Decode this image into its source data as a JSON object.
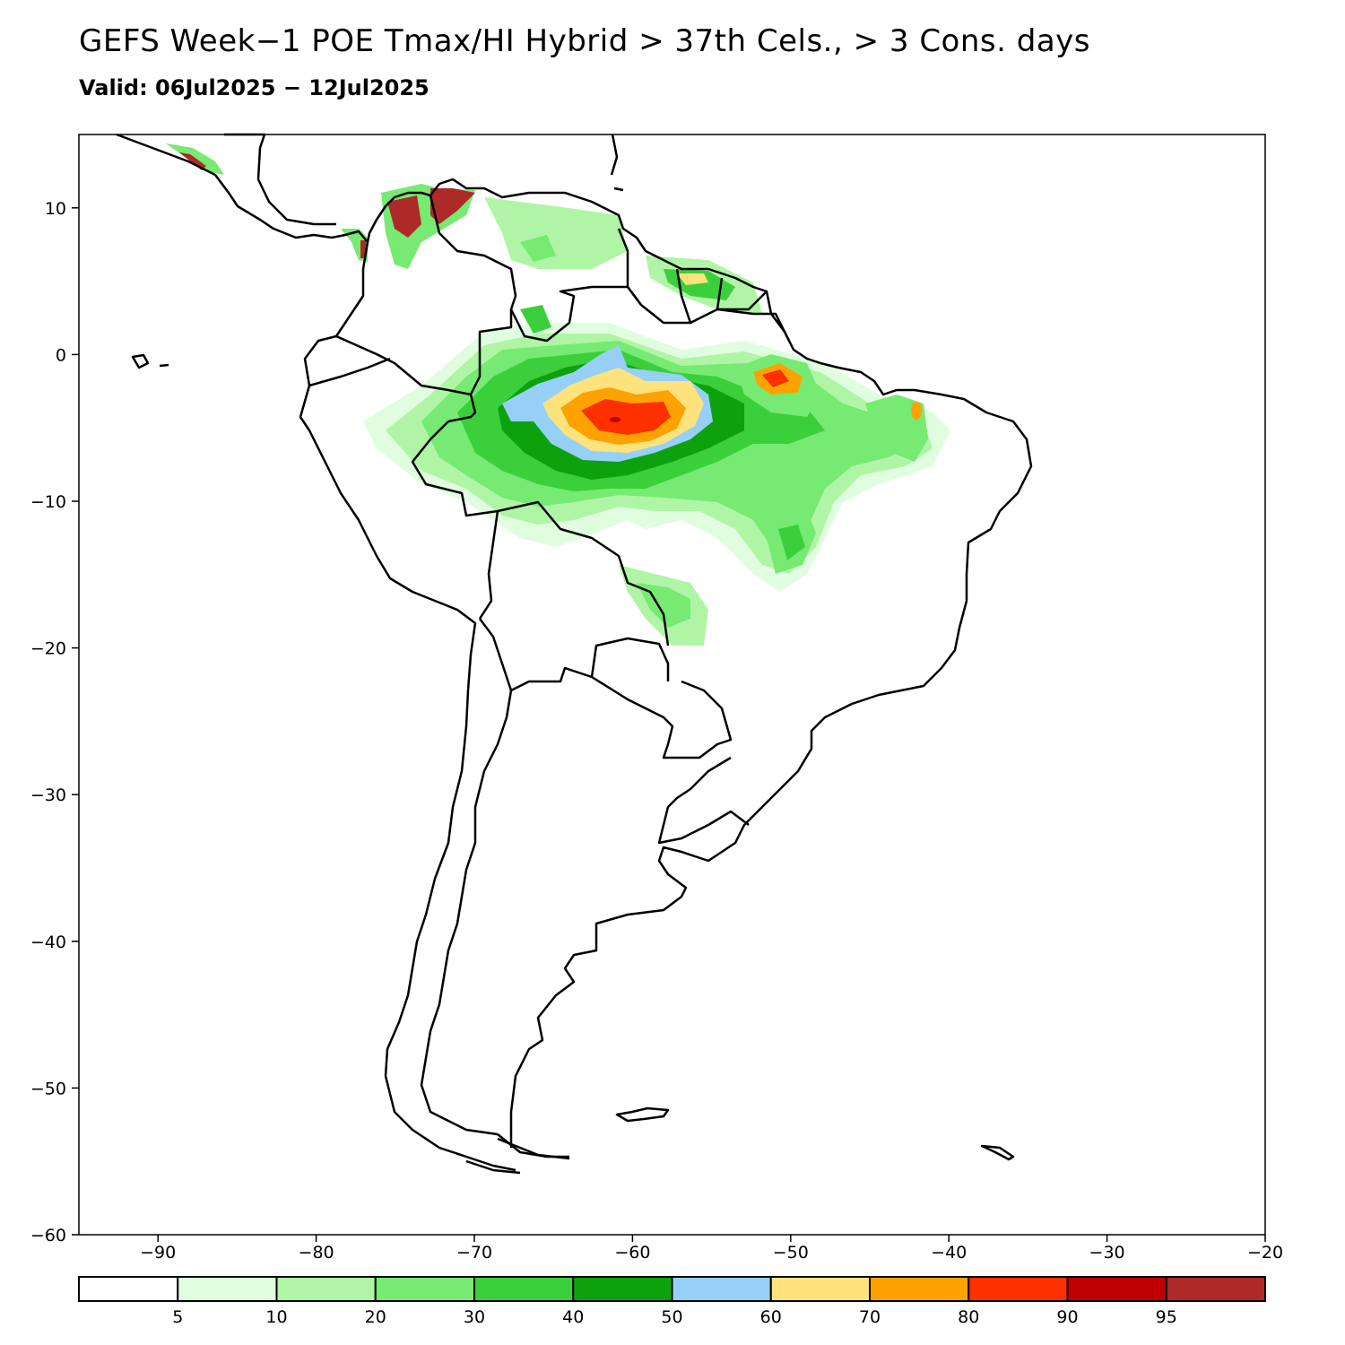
{
  "header": {
    "title": "GEFS Week−1 POE Tmax/HI Hybrid > 37th Cels., > 3 Cons. days",
    "subtitle": "Valid: 06Jul2025 − 12Jul2025"
  },
  "map": {
    "region": "South America",
    "lon_range": [
      -95,
      -20
    ],
    "lat_range": [
      -60,
      15
    ],
    "x_ticks": [
      "−90",
      "−80",
      "−70",
      "−60",
      "−50",
      "−40",
      "−30",
      "−20"
    ],
    "x_tick_values": [
      -90,
      -80,
      -70,
      -60,
      -50,
      -40,
      -30,
      -20
    ],
    "y_ticks": [
      "10",
      "0",
      "−10",
      "−20",
      "−30",
      "−40",
      "−50",
      "−60"
    ],
    "y_tick_values": [
      10,
      0,
      -10,
      -20,
      -30,
      -40,
      -50,
      -60
    ]
  },
  "colorbar": {
    "labels": [
      "5",
      "10",
      "20",
      "30",
      "40",
      "50",
      "60",
      "70",
      "80",
      "90",
      "95"
    ],
    "colors": [
      "#ffffff",
      "#e0fde0",
      "#b0f5a6",
      "#76ea72",
      "#3ccf3c",
      "#0ea10e",
      "#96d0f8",
      "#fee37c",
      "#fea202",
      "#fd3000",
      "#c00000",
      "#ae2a28"
    ]
  }
}
